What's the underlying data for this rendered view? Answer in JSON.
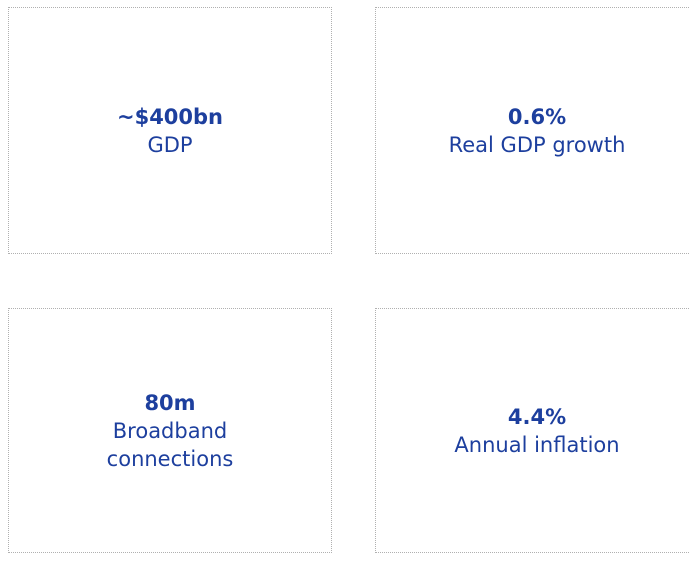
{
  "cards": [
    {
      "value": "~$400bn",
      "label": "GDP"
    },
    {
      "value": "0.6%",
      "label": "Real GDP growth"
    },
    {
      "value": "80m",
      "label": "Broadband connections"
    },
    {
      "value": "4.4%",
      "label": "Annual inflation"
    }
  ]
}
